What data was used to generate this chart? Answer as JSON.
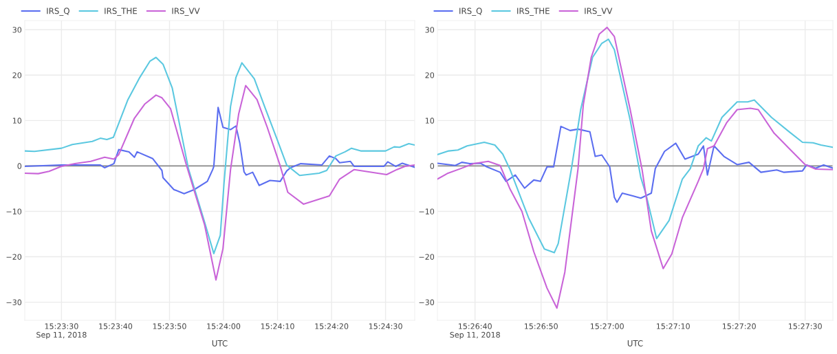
{
  "chart_data": [
    {
      "type": "line",
      "xlabel": "UTC",
      "legend": "top left",
      "grid": true,
      "line_style": "solid",
      "marker": "none",
      "xlim": [
        "2018-09-11T15:23:23.2",
        "2018-09-11T15:24:35.4"
      ],
      "xticks": [
        {
          "value": "2018-09-11T15:23:30",
          "label": "15:23:30\nSep 11, 2018"
        },
        {
          "value": "2018-09-11T15:23:40",
          "label": "15:23:40"
        },
        {
          "value": "2018-09-11T15:23:50",
          "label": "15:23:50"
        },
        {
          "value": "2018-09-11T15:24:00",
          "label": "15:24:00"
        },
        {
          "value": "2018-09-11T15:24:10",
          "label": "15:24:10"
        },
        {
          "value": "2018-09-11T15:24:20",
          "label": "15:24:20"
        },
        {
          "value": "2018-09-11T15:24:30",
          "label": "15:24:30"
        }
      ],
      "ylim": [
        -34,
        32
      ],
      "yticks": [
        {
          "value": -30,
          "label": "−30"
        },
        {
          "value": -20,
          "label": "−20"
        },
        {
          "value": -10,
          "label": "−10"
        },
        0,
        10,
        20,
        30
      ],
      "ref_lines": [
        {
          "axis": "y",
          "value": 0,
          "color": "#888888"
        }
      ],
      "series": [
        {
          "name": "IRS_Q",
          "color": "#5b6ef0",
          "x": [
            "2018-09-11T15:23:23.2",
            "2018-09-11T15:23:30",
            "2018-09-11T15:23:37.2",
            "2018-09-11T15:23:38",
            "2018-09-11T15:23:39.7",
            "2018-09-11T15:23:40.6",
            "2018-09-11T15:23:42.5",
            "2018-09-11T15:23:43.5",
            "2018-09-11T15:23:44",
            "2018-09-11T15:23:46.9",
            "2018-09-11T15:23:48.6",
            "2018-09-11T15:23:48.8",
            "2018-09-11T15:23:50.8",
            "2018-09-11T15:23:52.7",
            "2018-09-11T15:23:54.6",
            "2018-09-11T15:23:57",
            "2018-09-11T15:23:58",
            "2018-09-11T15:23:58.2",
            "2018-09-11T15:23:59",
            "2018-09-11T15:23:59.9",
            "2018-09-11T15:24:01.3",
            "2018-09-11T15:24:02.3",
            "2018-09-11T15:24:03",
            "2018-09-11T15:24:03.8",
            "2018-09-11T15:24:04.2",
            "2018-09-11T15:24:05.4",
            "2018-09-11T15:24:06.6",
            "2018-09-11T15:24:08.6",
            "2018-09-11T15:24:10.5",
            "2018-09-11T15:24:11.7",
            "2018-09-11T15:24:12.4",
            "2018-09-11T15:24:14.3",
            "2018-09-11T15:24:18.2",
            "2018-09-11T15:24:19.6",
            "2018-09-11T15:24:20.8",
            "2018-09-11T15:24:21.5",
            "2018-09-11T15:24:23.5",
            "2018-09-11T15:24:24.2",
            "2018-09-11T15:24:29.7",
            "2018-09-11T15:24:30.4",
            "2018-09-11T15:24:31.9",
            "2018-09-11T15:24:33.1",
            "2018-09-11T15:24:35.4"
          ],
          "values": [
            -0.1,
            0.2,
            0.2,
            -0.4,
            0.5,
            3.6,
            3.1,
            1.9,
            3.1,
            1.6,
            -1.0,
            -2.6,
            -5.2,
            -6.1,
            -5.2,
            -3.4,
            -0.8,
            -0.1,
            12.9,
            8.5,
            8.0,
            8.8,
            5.1,
            -1.3,
            -2.0,
            -1.4,
            -4.3,
            -3.2,
            -3.4,
            -1.1,
            -0.4,
            0.5,
            0.2,
            2.2,
            1.6,
            0.7,
            1.0,
            -0.1,
            -0.1,
            0.9,
            -0.1,
            0.6,
            -0.3
          ]
        },
        {
          "name": "IRS_THE",
          "color": "#5bc8e0",
          "x": [
            "2018-09-11T15:23:23.2",
            "2018-09-11T15:23:25",
            "2018-09-11T15:23:30",
            "2018-09-11T15:23:32",
            "2018-09-11T15:23:35.7",
            "2018-09-11T15:23:37.2",
            "2018-09-11T15:23:38.4",
            "2018-09-11T15:23:39.6",
            "2018-09-11T15:23:42.3",
            "2018-09-11T15:23:44.5",
            "2018-09-11T15:23:46.4",
            "2018-09-11T15:23:47.5",
            "2018-09-11T15:23:48.8",
            "2018-09-11T15:23:50.5",
            "2018-09-11T15:23:53.5",
            "2018-09-11T15:23:56.5",
            "2018-09-11T15:23:58.2",
            "2018-09-11T15:23:59.4",
            "2018-09-11T15:24:00.1",
            "2018-09-11T15:24:01.3",
            "2018-09-11T15:24:02.3",
            "2018-09-11T15:24:03.4",
            "2018-09-11T15:24:05.7",
            "2018-09-11T15:24:07.6",
            "2018-09-11T15:24:10",
            "2018-09-11T15:24:11.7",
            "2018-09-11T15:24:14.1",
            "2018-09-11T15:24:17.7",
            "2018-09-11T15:24:19.1",
            "2018-09-11T15:24:20.8",
            "2018-09-11T15:24:22.5",
            "2018-09-11T15:24:23.7",
            "2018-09-11T15:24:25.4",
            "2018-09-11T15:24:30",
            "2018-09-11T15:24:31.6",
            "2018-09-11T15:24:32.6",
            "2018-09-11T15:24:34.3",
            "2018-09-11T15:24:35.4"
          ],
          "values": [
            3.3,
            3.2,
            3.9,
            4.7,
            5.4,
            6.1,
            5.8,
            6.3,
            14.6,
            19.5,
            23.1,
            23.9,
            22.4,
            17.2,
            -0.6,
            -12.4,
            -19.3,
            -15.3,
            -3.7,
            13.1,
            19.5,
            22.7,
            19.2,
            13.1,
            5.6,
            0.2,
            -2.1,
            -1.6,
            -1.0,
            2.2,
            3.1,
            3.9,
            3.3,
            3.3,
            4.2,
            4.1,
            4.9,
            4.6
          ]
        },
        {
          "name": "IRS_VV",
          "color": "#c964d8",
          "x": [
            "2018-09-11T15:23:23.2",
            "2018-09-11T15:23:25.7",
            "2018-09-11T15:23:27.7",
            "2018-09-11T15:23:30",
            "2018-09-11T15:23:32.5",
            "2018-09-11T15:23:35.4",
            "2018-09-11T15:23:38",
            "2018-09-11T15:23:39.7",
            "2018-09-11T15:23:40.6",
            "2018-09-11T15:23:43.5",
            "2018-09-11T15:23:45.4",
            "2018-09-11T15:23:47.5",
            "2018-09-11T15:23:48.6",
            "2018-09-11T15:23:50.2",
            "2018-09-11T15:23:53",
            "2018-09-11T15:23:56.5",
            "2018-09-11T15:23:58.6",
            "2018-09-11T15:23:59.9",
            "2018-09-11T15:24:01.3",
            "2018-09-11T15:24:02.8",
            "2018-09-11T15:24:04.1",
            "2018-09-11T15:24:06.2",
            "2018-09-11T15:24:08.1",
            "2018-09-11T15:24:10.5",
            "2018-09-11T15:24:11.9",
            "2018-09-11T15:24:14.8",
            "2018-09-11T15:24:19.6",
            "2018-09-11T15:24:21.5",
            "2018-09-11T15:24:24.2",
            "2018-09-11T15:24:30.2",
            "2018-09-11T15:24:32.1",
            "2018-09-11T15:24:33.6",
            "2018-09-11T15:24:35.4"
          ],
          "values": [
            -1.6,
            -1.7,
            -1.2,
            -0.1,
            0.5,
            1.0,
            1.9,
            1.5,
            2.5,
            10.5,
            13.6,
            15.6,
            15.0,
            12.6,
            0.7,
            -13.0,
            -25.1,
            -18.2,
            -0.8,
            11.4,
            17.7,
            14.6,
            8.5,
            0.0,
            -5.8,
            -8.4,
            -6.6,
            -2.9,
            -0.8,
            -1.9,
            -0.8,
            -0.1,
            0.2
          ]
        }
      ]
    },
    {
      "type": "line",
      "xlabel": "UTC",
      "legend": "top left",
      "grid": true,
      "line_style": "solid",
      "marker": "none",
      "xlim": [
        "2018-09-11T15:26:34.3",
        "2018-09-11T15:27:34.2"
      ],
      "xticks": [
        {
          "value": "2018-09-11T15:26:40",
          "label": "15:26:40\nSep 11, 2018"
        },
        {
          "value": "2018-09-11T15:26:50",
          "label": "15:26:50"
        },
        {
          "value": "2018-09-11T15:27:00",
          "label": "15:27:00"
        },
        {
          "value": "2018-09-11T15:27:10",
          "label": "15:27:10"
        },
        {
          "value": "2018-09-11T15:27:20",
          "label": "15:27:20"
        },
        {
          "value": "2018-09-11T15:27:30",
          "label": "15:27:30"
        }
      ],
      "ylim": [
        -34,
        32
      ],
      "yticks": [
        {
          "value": -30,
          "label": "−30"
        },
        {
          "value": -20,
          "label": "−20"
        },
        {
          "value": -10,
          "label": "−10"
        },
        0,
        10,
        20,
        30
      ],
      "ref_lines": [
        {
          "axis": "y",
          "value": 0,
          "color": "#888888"
        }
      ],
      "series": [
        {
          "name": "IRS_Q",
          "color": "#5b6ef0",
          "x": [
            "2018-09-11T15:26:34.3",
            "2018-09-11T15:26:36",
            "2018-09-11T15:26:37",
            "2018-09-11T15:26:38",
            "2018-09-11T15:26:39.2",
            "2018-09-11T15:26:40.8",
            "2018-09-11T15:26:41.8",
            "2018-09-11T15:26:43.8",
            "2018-09-11T15:26:44.7",
            "2018-09-11T15:26:46.1",
            "2018-09-11T15:26:47.5",
            "2018-09-11T15:26:48.9",
            "2018-09-11T15:26:49.9",
            "2018-09-11T15:26:50.9",
            "2018-09-11T15:26:51.9",
            "2018-09-11T15:26:53",
            "2018-09-11T15:26:54.4",
            "2018-09-11T15:26:55.6",
            "2018-09-11T15:26:57.4",
            "2018-09-11T15:26:58.2",
            "2018-09-11T15:26:59.2",
            "2018-09-11T15:27:00.4",
            "2018-09-11T15:27:01.1",
            "2018-09-11T15:27:01.5",
            "2018-09-11T15:27:02.3",
            "2018-09-11T15:27:03.9",
            "2018-09-11T15:27:05.1",
            "2018-09-11T15:27:06.7",
            "2018-09-11T15:27:07.3",
            "2018-09-11T15:27:08.7",
            "2018-09-11T15:27:10.4",
            "2018-09-11T15:27:11.8",
            "2018-09-11T15:27:13.8",
            "2018-09-11T15:27:14.6",
            "2018-09-11T15:27:15.2",
            "2018-09-11T15:27:16.2",
            "2018-09-11T15:27:17.7",
            "2018-09-11T15:27:19.7",
            "2018-09-11T15:27:21.5",
            "2018-09-11T15:27:23.3",
            "2018-09-11T15:27:25.7",
            "2018-09-11T15:27:26.8",
            "2018-09-11T15:27:29.6",
            "2018-09-11T15:27:30.2",
            "2018-09-11T15:27:31.6",
            "2018-09-11T15:27:32.8",
            "2018-09-11T15:27:34.2"
          ],
          "values": [
            0.6,
            0.3,
            0.1,
            0.8,
            0.5,
            0.6,
            -0.2,
            -1.4,
            -3.4,
            -2.0,
            -4.9,
            -3.1,
            -3.4,
            -0.2,
            -0.2,
            8.7,
            7.8,
            8.1,
            7.5,
            2.1,
            2.4,
            -0.2,
            -6.9,
            -8.0,
            -6.0,
            -6.6,
            -7.1,
            -6.0,
            -0.6,
            3.2,
            5.0,
            1.5,
            2.6,
            4.4,
            -2.0,
            4.4,
            2.1,
            0.3,
            0.8,
            -1.4,
            -0.9,
            -1.4,
            -1.1,
            0.2,
            -0.5,
            0.2,
            -0.5
          ]
        },
        {
          "name": "IRS_THE",
          "color": "#5bc8e0",
          "x": [
            "2018-09-11T15:26:34.3",
            "2018-09-11T15:26:36",
            "2018-09-11T15:26:37.4",
            "2018-09-11T15:26:38.8",
            "2018-09-11T15:26:41.4",
            "2018-09-11T15:26:43",
            "2018-09-11T15:26:44.2",
            "2018-09-11T15:26:45.3",
            "2018-09-11T15:26:48.1",
            "2018-09-11T15:26:50.5",
            "2018-09-11T15:26:52",
            "2018-09-11T15:26:52.6",
            "2018-09-11T15:26:54.6",
            "2018-09-11T15:26:56",
            "2018-09-11T15:26:57.8",
            "2018-09-11T15:26:59.2",
            "2018-09-11T15:27:00.2",
            "2018-09-11T15:27:01.1",
            "2018-09-11T15:27:03.5",
            "2018-09-11T15:27:05.1",
            "2018-09-11T15:27:05.9",
            "2018-09-11T15:27:07.5",
            "2018-09-11T15:27:09.4",
            "2018-09-11T15:27:11.4",
            "2018-09-11T15:27:12.6",
            "2018-09-11T15:27:13.8",
            "2018-09-11T15:27:15",
            "2018-09-11T15:27:15.8",
            "2018-09-11T15:27:17.4",
            "2018-09-11T15:27:19.7",
            "2018-09-11T15:27:21.3",
            "2018-09-11T15:27:22.3",
            "2018-09-11T15:27:24.9",
            "2018-09-11T15:27:27.6",
            "2018-09-11T15:27:29.6",
            "2018-09-11T15:27:31.2",
            "2018-09-11T15:27:32.4",
            "2018-09-11T15:27:34.2"
          ],
          "values": [
            2.5,
            3.3,
            3.5,
            4.4,
            5.2,
            4.6,
            2.6,
            -0.8,
            -11.4,
            -18.3,
            -19.1,
            -17.1,
            -0.6,
            12.4,
            23.9,
            27.0,
            27.9,
            25.6,
            10.1,
            -2.5,
            -6.3,
            -16.0,
            -12.0,
            -2.9,
            -0.6,
            4.4,
            6.2,
            5.5,
            10.7,
            14.1,
            14.1,
            14.5,
            10.7,
            7.5,
            5.2,
            5.1,
            4.6,
            4.1
          ]
        },
        {
          "name": "IRS_VV",
          "color": "#c964d8",
          "x": [
            "2018-09-11T15:26:34.3",
            "2018-09-11T15:26:35.9",
            "2018-09-11T15:26:37.8",
            "2018-09-11T15:26:39.8",
            "2018-09-11T15:26:42",
            "2018-09-11T15:26:43.8",
            "2018-09-11T15:26:45.3",
            "2018-09-11T15:26:47.1",
            "2018-09-11T15:26:48.9",
            "2018-09-11T15:26:50.9",
            "2018-09-11T15:26:52.4",
            "2018-09-11T15:26:53.6",
            "2018-09-11T15:26:55.6",
            "2018-09-11T15:26:56.4",
            "2018-09-11T15:26:57.6",
            "2018-09-11T15:26:58.8",
            "2018-09-11T15:27:00",
            "2018-09-11T15:27:01.1",
            "2018-09-11T15:27:03.5",
            "2018-09-11T15:27:05.3",
            "2018-09-11T15:27:06.7",
            "2018-09-11T15:27:08.5",
            "2018-09-11T15:27:09.8",
            "2018-09-11T15:27:11.4",
            "2018-09-11T15:27:13.8",
            "2018-09-11T15:27:14.6",
            "2018-09-11T15:27:15.2",
            "2018-09-11T15:27:16.2",
            "2018-09-11T15:27:18.1",
            "2018-09-11T15:27:19.7",
            "2018-09-11T15:27:21.7",
            "2018-09-11T15:27:22.9",
            "2018-09-11T15:27:25.3",
            "2018-09-11T15:27:27.6",
            "2018-09-11T15:27:30",
            "2018-09-11T15:27:31.6",
            "2018-09-11T15:27:34.2"
          ],
          "values": [
            -2.9,
            -1.6,
            -0.6,
            0.5,
            1.0,
            0.1,
            -5.1,
            -10.0,
            -18.9,
            -26.9,
            -31.3,
            -23.4,
            -0.6,
            13.5,
            23.9,
            29.0,
            30.5,
            28.5,
            12.4,
            -0.8,
            -14.3,
            -22.6,
            -19.4,
            -11.4,
            -3.4,
            -0.6,
            3.8,
            4.4,
            9.5,
            12.4,
            12.7,
            12.4,
            7.2,
            3.8,
            0.3,
            -0.7,
            -0.8
          ]
        }
      ]
    }
  ]
}
